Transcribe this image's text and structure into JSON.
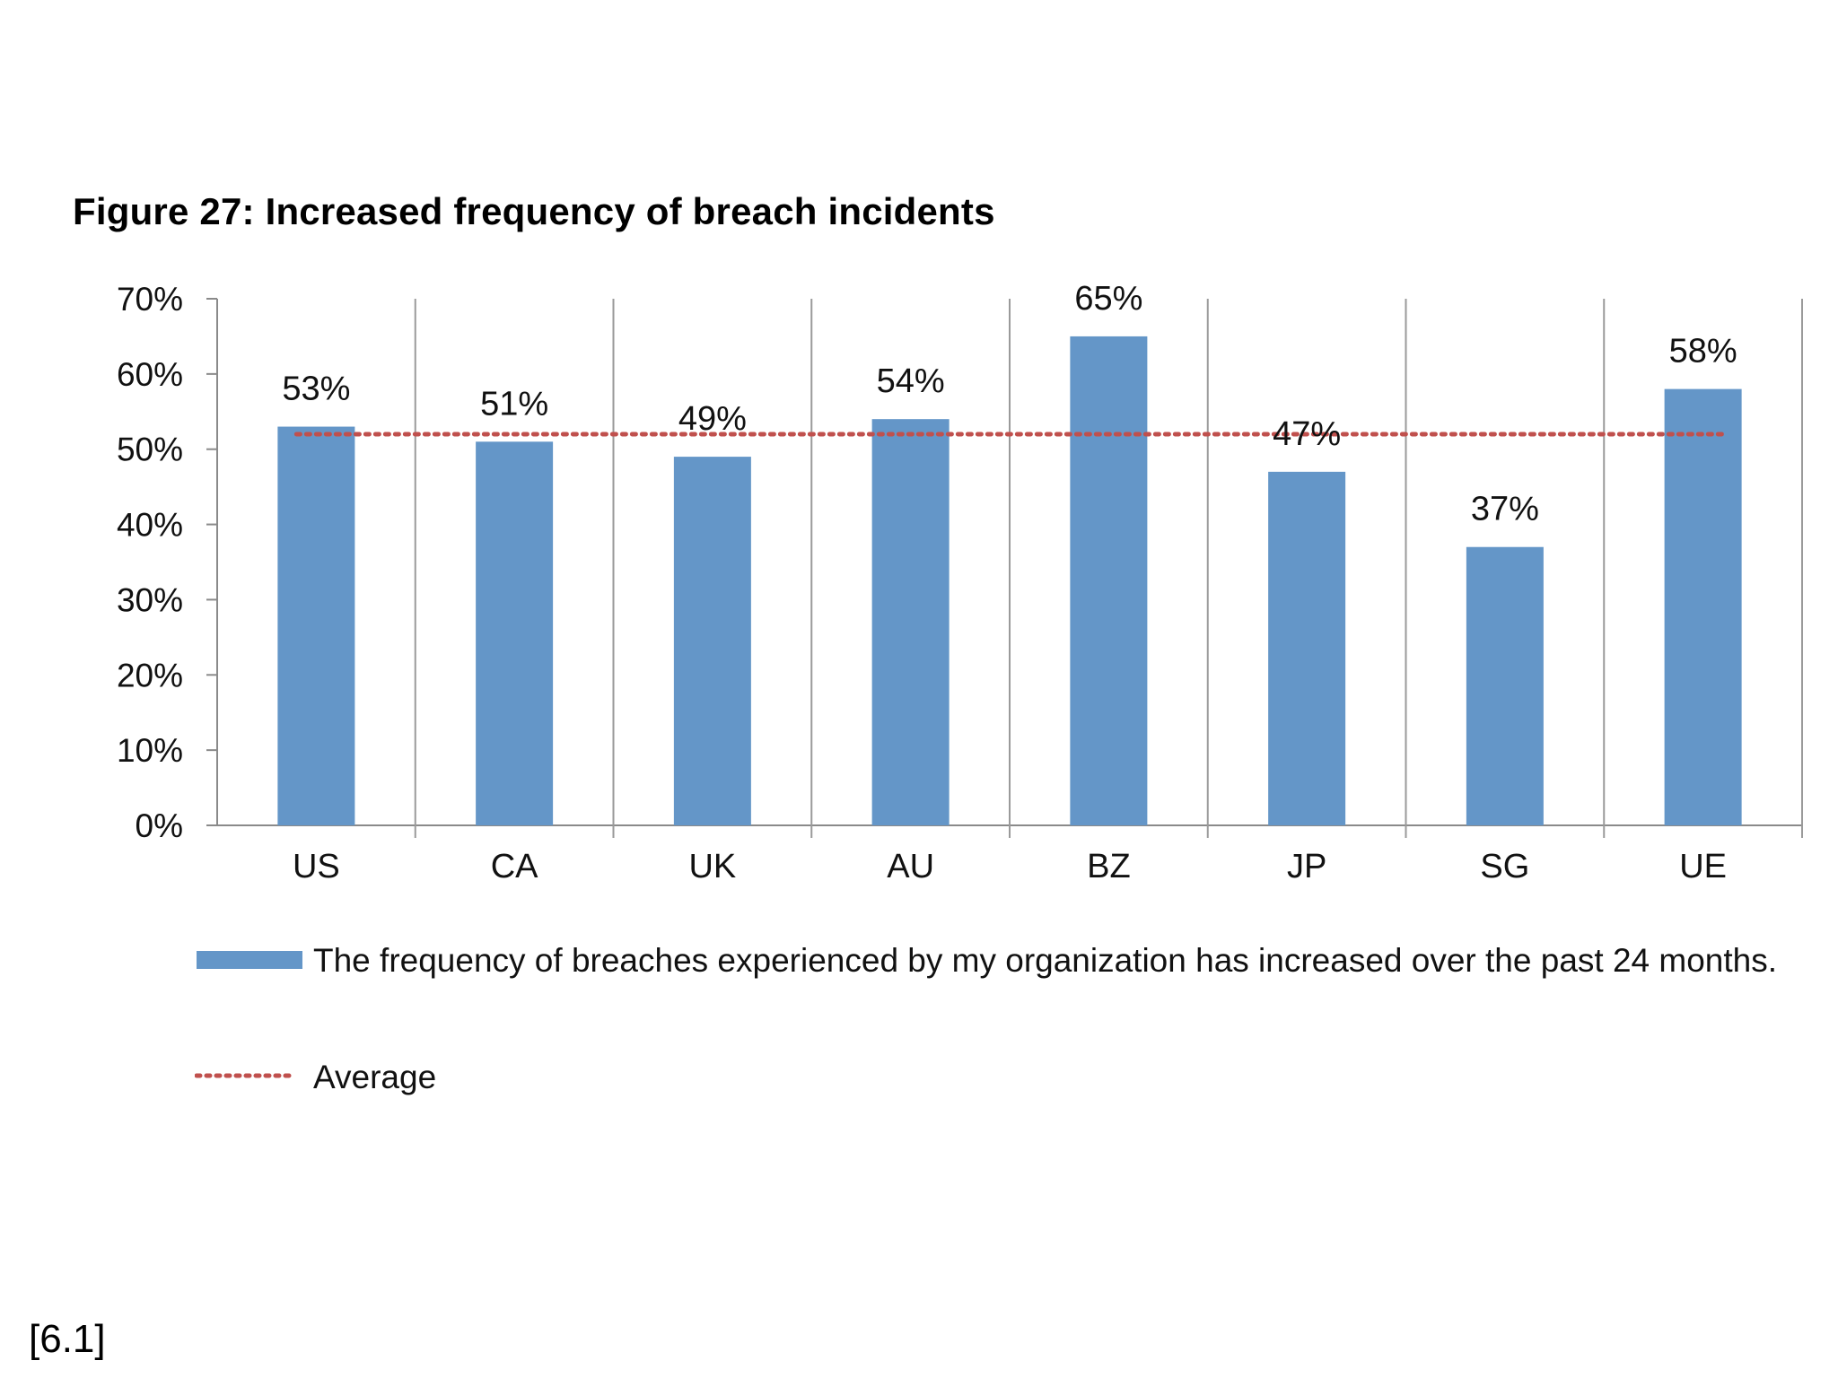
{
  "chart_data": {
    "type": "bar",
    "title": "Figure 27: Increased frequency of breach incidents",
    "categories": [
      "US",
      "CA",
      "UK",
      "AU",
      "BZ",
      "JP",
      "SG",
      "UE"
    ],
    "series": [
      {
        "name": "The frequency of breaches experienced by my organization has increased over the past 24 months.",
        "values": [
          53,
          51,
          49,
          54,
          65,
          47,
          37,
          58
        ],
        "labels": [
          "53%",
          "51%",
          "49%",
          "54%",
          "65%",
          "47%",
          "37%",
          "58%"
        ],
        "color": "#6496c8"
      }
    ],
    "average": {
      "name": "Average",
      "value": 52,
      "color": "#c0504d"
    },
    "ylim": [
      0,
      70
    ],
    "yticks": [
      0,
      10,
      20,
      30,
      40,
      50,
      60,
      70
    ],
    "ytick_labels": [
      "0%",
      "10%",
      "20%",
      "30%",
      "40%",
      "50%",
      "60%",
      "70%"
    ],
    "xlabel": "",
    "ylabel": "",
    "grid": "vertical separators",
    "legend": "bottom"
  },
  "footnote": "[6.1]"
}
